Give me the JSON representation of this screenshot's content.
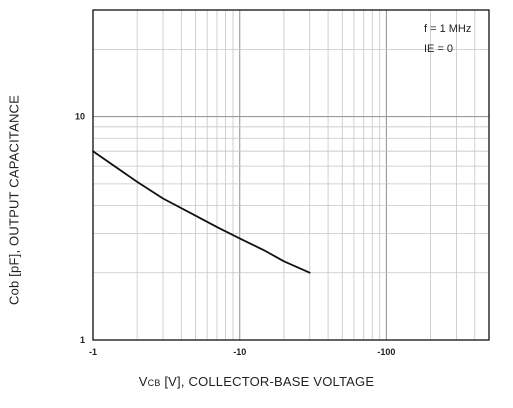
{
  "chart_data": {
    "type": "line",
    "title": "",
    "xlabel_main": "V",
    "xlabel_sub": "CB",
    "xlabel_rest": " [V], COLLECTOR-BASE VOLTAGE",
    "ylabel": "Cob [pF], OUTPUT CAPACITANCE",
    "x_scale": "log",
    "y_scale": "log",
    "x_magnitude_range": [
      1,
      500
    ],
    "y_range": [
      1,
      30
    ],
    "x_tick_labels": [
      "-1",
      "-10",
      "-100"
    ],
    "y_tick_labels": [
      "1",
      "10"
    ],
    "annotations": [
      "f = 1 MHz",
      "IE = 0"
    ],
    "grid": true,
    "series": [
      {
        "x": [
          -1,
          -2,
          -3,
          -5,
          -7,
          -10,
          -15,
          -20,
          -30
        ],
        "y": [
          7,
          5.1,
          4.3,
          3.6,
          3.2,
          2.85,
          2.5,
          2.25,
          2.0
        ]
      }
    ]
  }
}
